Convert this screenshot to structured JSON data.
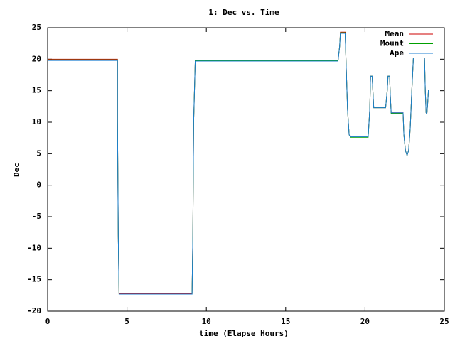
{
  "chart_data": {
    "type": "line",
    "title": "1: Dec vs. Time",
    "x_label": "time (Elapse Hours)",
    "y_label": "Dec",
    "x": [
      0,
      4.4,
      4.4,
      4.45,
      4.5,
      9.1,
      9.15,
      9.2,
      9.3,
      18.3,
      18.4,
      18.45,
      18.75,
      18.8,
      18.9,
      19.0,
      19.1,
      20.2,
      20.3,
      20.35,
      20.45,
      20.55,
      21.3,
      21.4,
      21.45,
      21.55,
      21.6,
      21.65,
      22.4,
      22.45,
      22.55,
      22.65,
      22.75,
      22.85,
      22.95,
      23.05,
      23.75,
      23.8,
      23.85,
      23.9,
      23.95,
      24.0
    ],
    "series": [
      {
        "name": "Mean",
        "color": "#cc0000",
        "values": [
          20.0,
          20.0,
          10.5,
          -8,
          -17.2,
          -17.2,
          -8,
          10,
          19.8,
          19.8,
          22,
          24.3,
          24.3,
          20,
          12,
          8,
          7.8,
          7.8,
          12,
          17.3,
          17.3,
          12.3,
          12.3,
          15,
          17.3,
          17.3,
          14,
          11.5,
          11.5,
          8,
          5.5,
          4.7,
          5.5,
          9,
          15,
          20.2,
          20.2,
          15,
          11.5,
          11.3,
          13,
          15.1
        ]
      },
      {
        "name": "Mount",
        "color": "#00a000",
        "values": [
          19.9,
          19.9,
          10.5,
          -8,
          -17.3,
          -17.3,
          -8,
          10,
          19.8,
          19.8,
          22,
          24.2,
          24.2,
          20,
          12,
          8,
          7.6,
          7.6,
          12,
          17.3,
          17.3,
          12.3,
          12.3,
          15,
          17.3,
          17.3,
          14,
          11.4,
          11.4,
          8,
          5.5,
          4.7,
          5.5,
          9,
          15,
          20.2,
          20.2,
          15,
          11.5,
          11.3,
          13,
          15.1
        ]
      },
      {
        "name": "Ape",
        "color": "#1f7fd0",
        "values": [
          19.8,
          19.8,
          10.5,
          -8,
          -17.3,
          -17.3,
          -8,
          10,
          19.7,
          19.7,
          22,
          24.1,
          24.1,
          20,
          12,
          8,
          7.7,
          7.7,
          12,
          17.3,
          17.3,
          12.3,
          12.3,
          15,
          17.3,
          17.3,
          14,
          11.5,
          11.5,
          8,
          5.5,
          4.7,
          5.5,
          9,
          15,
          20.2,
          20.2,
          15,
          11.5,
          11.3,
          13,
          15.1
        ]
      }
    ],
    "xlim": [
      0,
      25
    ],
    "xticks": [
      0,
      5,
      10,
      15,
      20,
      25
    ],
    "ylim": [
      -20,
      25
    ],
    "yticks": [
      -20,
      -15,
      -10,
      -5,
      0,
      5,
      10,
      15,
      20,
      25
    ],
    "grid": false,
    "legend": "top-right"
  }
}
